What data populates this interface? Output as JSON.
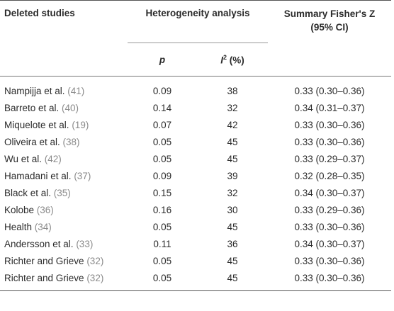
{
  "headers": {
    "study": "Deleted studies",
    "heterogeneity": "Heterogeneity analysis",
    "summary_line1": "Summary Fisher's Z",
    "summary_line2": "(95% CI)",
    "p": "p",
    "i2_base": "I",
    "i2_sup": "2",
    "i2_unit": " (%)"
  },
  "rows": [
    {
      "study": "Nampijja et al. ",
      "ref": "(41)",
      "p": "0.09",
      "i2": "38",
      "z": "0.33 (0.30–0.36)"
    },
    {
      "study": "Barreto et al. ",
      "ref": "(40)",
      "p": "0.14",
      "i2": "32",
      "z": "0.34 (0.31–0.37)"
    },
    {
      "study": "Miquelote et al. ",
      "ref": "(19)",
      "p": "0.07",
      "i2": "42",
      "z": "0.33 (0.30–0.36)"
    },
    {
      "study": "Oliveira et al. ",
      "ref": "(38)",
      "p": "0.05",
      "i2": "45",
      "z": "0.33 (0.30–0.36)"
    },
    {
      "study": "Wu et al. ",
      "ref": "(42)",
      "p": "0.05",
      "i2": "45",
      "z": "0.33 (0.29–0.37)"
    },
    {
      "study": "Hamadani et al. ",
      "ref": "(37)",
      "p": "0.09",
      "i2": "39",
      "z": "0.32 (0.28–0.35)"
    },
    {
      "study": "Black et al. ",
      "ref": "(35)",
      "p": "0.15",
      "i2": "32",
      "z": "0.34 (0.30–0.37)"
    },
    {
      "study": "Kolobe ",
      "ref": "(36)",
      "p": "0.16",
      "i2": "30",
      "z": "0.33 (0.29–0.36)"
    },
    {
      "study": "Health ",
      "ref": "(34)",
      "p": "0.05",
      "i2": "45",
      "z": "0.33 (0.30–0.36)"
    },
    {
      "study": "Andersson et al. ",
      "ref": "(33)",
      "p": "0.11",
      "i2": "36",
      "z": "0.34 (0.30–0.37)"
    },
    {
      "study": "Richter and Grieve ",
      "ref": "(32)",
      "p": "0.05",
      "i2": "45",
      "z": "0.33 (0.30–0.36)"
    },
    {
      "study": "Richter and Grieve ",
      "ref": "(32)",
      "p": "0.05",
      "i2": "45",
      "z": "0.33 (0.30–0.36)"
    }
  ]
}
